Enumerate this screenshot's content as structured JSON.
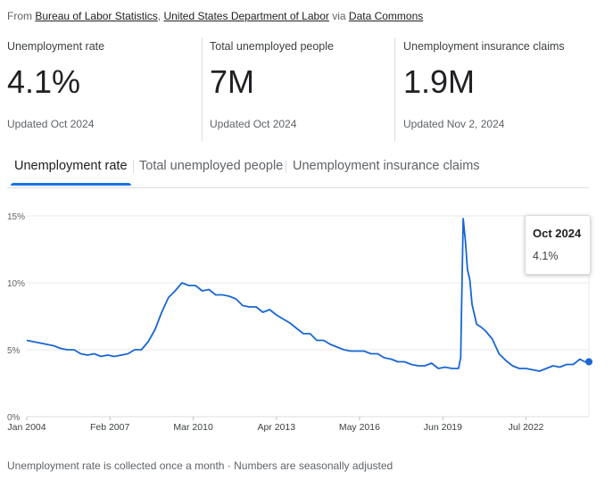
{
  "source": {
    "prefix": "From",
    "links": [
      "Bureau of Labor Statistics",
      "United States Department of Labor"
    ],
    "via": "via",
    "via_link": "Data Commons"
  },
  "stats": [
    {
      "label": "Unemployment rate",
      "value": "4.1%",
      "updated": "Updated Oct 2024"
    },
    {
      "label": "Total unemployed people",
      "value": "7M",
      "updated": "Updated Oct 2024"
    },
    {
      "label": "Unemployment insurance claims",
      "value": "1.9M",
      "updated": "Updated Nov 2, 2024"
    }
  ],
  "tabs": [
    {
      "label": "Unemployment rate",
      "active": true
    },
    {
      "label": "Total unemployed people",
      "active": false
    },
    {
      "label": "Unemployment insurance claims",
      "active": false
    }
  ],
  "tooltip": {
    "date": "Oct 2024",
    "value": "4.1%"
  },
  "footnote": "Unemployment rate is collected once a month · Numbers are seasonally adjusted",
  "colors": {
    "accent": "#1a73e8",
    "line": "#1967d2",
    "grid": "#e8eaed"
  },
  "chart_data": {
    "type": "line",
    "xlabel": "",
    "ylabel": "",
    "ylim": [
      0,
      15
    ],
    "xlim": [
      2004.0,
      2024.83
    ],
    "grid": true,
    "yticks": [
      {
        "v": 0,
        "label": "0%"
      },
      {
        "v": 5,
        "label": "5%"
      },
      {
        "v": 10,
        "label": "10%"
      },
      {
        "v": 15,
        "label": "15%"
      }
    ],
    "xticks": [
      {
        "v": 2004.0,
        "label": "Jan 2004"
      },
      {
        "v": 2007.08,
        "label": "Feb 2007"
      },
      {
        "v": 2010.17,
        "label": "Mar 2010"
      },
      {
        "v": 2013.25,
        "label": "Apr 2013"
      },
      {
        "v": 2016.33,
        "label": "May 2016"
      },
      {
        "v": 2019.42,
        "label": "Jun 2019"
      },
      {
        "v": 2022.5,
        "label": "Jul 2022"
      }
    ],
    "series": [
      {
        "values": [
          [
            2004.0,
            5.7
          ],
          [
            2004.25,
            5.6
          ],
          [
            2004.5,
            5.5
          ],
          [
            2004.75,
            5.4
          ],
          [
            2005.0,
            5.3
          ],
          [
            2005.25,
            5.1
          ],
          [
            2005.5,
            5.0
          ],
          [
            2005.75,
            5.0
          ],
          [
            2006.0,
            4.7
          ],
          [
            2006.25,
            4.6
          ],
          [
            2006.5,
            4.7
          ],
          [
            2006.75,
            4.5
          ],
          [
            2007.0,
            4.6
          ],
          [
            2007.25,
            4.5
          ],
          [
            2007.5,
            4.6
          ],
          [
            2007.75,
            4.7
          ],
          [
            2008.0,
            5.0
          ],
          [
            2008.25,
            5.0
          ],
          [
            2008.5,
            5.6
          ],
          [
            2008.75,
            6.5
          ],
          [
            2009.0,
            7.8
          ],
          [
            2009.25,
            8.9
          ],
          [
            2009.5,
            9.4
          ],
          [
            2009.75,
            10.0
          ],
          [
            2010.0,
            9.8
          ],
          [
            2010.25,
            9.8
          ],
          [
            2010.5,
            9.4
          ],
          [
            2010.75,
            9.5
          ],
          [
            2011.0,
            9.1
          ],
          [
            2011.25,
            9.1
          ],
          [
            2011.5,
            9.0
          ],
          [
            2011.75,
            8.8
          ],
          [
            2012.0,
            8.3
          ],
          [
            2012.25,
            8.2
          ],
          [
            2012.5,
            8.2
          ],
          [
            2012.75,
            7.8
          ],
          [
            2013.0,
            8.0
          ],
          [
            2013.25,
            7.6
          ],
          [
            2013.5,
            7.3
          ],
          [
            2013.75,
            7.0
          ],
          [
            2014.0,
            6.6
          ],
          [
            2014.25,
            6.2
          ],
          [
            2014.5,
            6.2
          ],
          [
            2014.75,
            5.7
          ],
          [
            2015.0,
            5.7
          ],
          [
            2015.25,
            5.4
          ],
          [
            2015.5,
            5.2
          ],
          [
            2015.75,
            5.0
          ],
          [
            2016.0,
            4.9
          ],
          [
            2016.25,
            4.9
          ],
          [
            2016.5,
            4.9
          ],
          [
            2016.75,
            4.7
          ],
          [
            2017.0,
            4.7
          ],
          [
            2017.25,
            4.4
          ],
          [
            2017.5,
            4.3
          ],
          [
            2017.75,
            4.1
          ],
          [
            2018.0,
            4.1
          ],
          [
            2018.25,
            3.9
          ],
          [
            2018.5,
            3.8
          ],
          [
            2018.75,
            3.8
          ],
          [
            2019.0,
            4.0
          ],
          [
            2019.25,
            3.6
          ],
          [
            2019.5,
            3.7
          ],
          [
            2019.75,
            3.6
          ],
          [
            2020.0,
            3.6
          ],
          [
            2020.08,
            4.4
          ],
          [
            2020.17,
            14.8
          ],
          [
            2020.25,
            13.2
          ],
          [
            2020.33,
            11.0
          ],
          [
            2020.42,
            10.2
          ],
          [
            2020.5,
            8.4
          ],
          [
            2020.67,
            6.9
          ],
          [
            2020.83,
            6.7
          ],
          [
            2021.0,
            6.4
          ],
          [
            2021.25,
            5.8
          ],
          [
            2021.5,
            4.7
          ],
          [
            2021.75,
            4.2
          ],
          [
            2022.0,
            3.8
          ],
          [
            2022.25,
            3.6
          ],
          [
            2022.5,
            3.6
          ],
          [
            2022.75,
            3.5
          ],
          [
            2023.0,
            3.4
          ],
          [
            2023.25,
            3.6
          ],
          [
            2023.5,
            3.8
          ],
          [
            2023.75,
            3.7
          ],
          [
            2024.0,
            3.9
          ],
          [
            2024.25,
            3.9
          ],
          [
            2024.5,
            4.3
          ],
          [
            2024.67,
            4.1
          ],
          [
            2024.83,
            4.1
          ]
        ]
      }
    ],
    "highlight": {
      "x": 2024.83,
      "y": 4.1
    }
  }
}
